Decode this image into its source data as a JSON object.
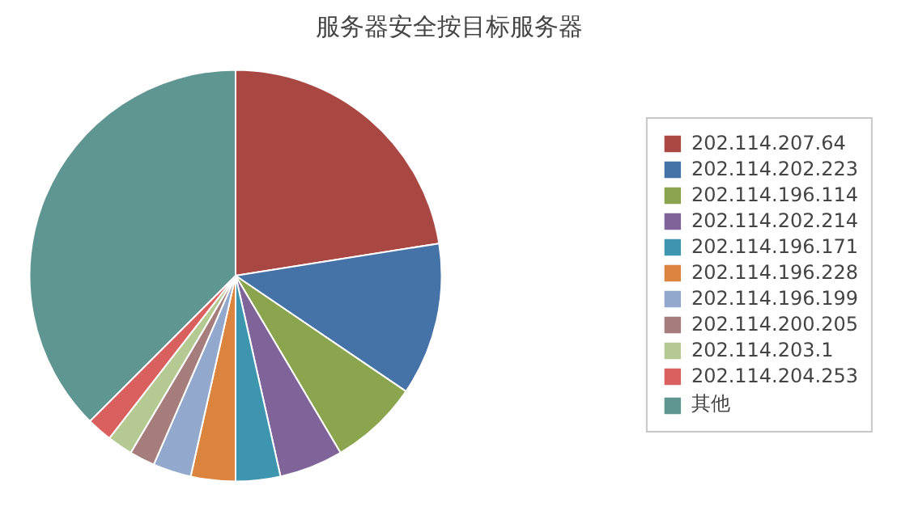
{
  "chart_data": {
    "type": "pie",
    "title": "服务器安全按目标服务器",
    "categories": [
      "202.114.207.64",
      "202.114.202.223",
      "202.114.196.114",
      "202.114.202.214",
      "202.114.196.171",
      "202.114.196.228",
      "202.114.196.199",
      "202.114.200.205",
      "202.114.203.1",
      "202.114.204.253",
      "其他"
    ],
    "values": [
      22.5,
      12,
      7,
      5,
      3.5,
      3.5,
      3,
      2,
      2,
      2,
      37.5
    ],
    "colors": [
      "#a94743",
      "#4572a7",
      "#8aa54e",
      "#7f649a",
      "#3d96ae",
      "#db843d",
      "#92a8cd",
      "#a47d7c",
      "#b5ca92",
      "#d9605e",
      "#5f9691"
    ],
    "legend": "right"
  }
}
